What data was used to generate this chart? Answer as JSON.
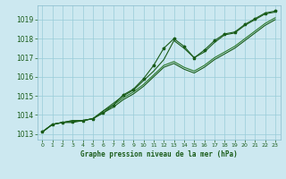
{
  "x": [
    0,
    1,
    2,
    3,
    4,
    5,
    6,
    7,
    8,
    9,
    10,
    11,
    12,
    13,
    14,
    15,
    16,
    17,
    18,
    19,
    20,
    21,
    22,
    23
  ],
  "line1": [
    1013.1,
    1013.5,
    1013.6,
    1013.7,
    1013.7,
    1013.8,
    1014.2,
    1014.6,
    1015.0,
    1015.3,
    1015.8,
    1016.3,
    1016.9,
    1017.9,
    1017.5,
    1017.0,
    1017.3,
    1017.8,
    1018.2,
    1018.3,
    1018.7,
    1019.0,
    1019.3,
    1019.4
  ],
  "line2": [
    1013.1,
    1013.5,
    1013.6,
    1013.7,
    1013.7,
    1013.8,
    1014.2,
    1014.5,
    1014.9,
    1015.2,
    1015.6,
    1016.1,
    1016.6,
    1016.8,
    1016.5,
    1016.3,
    1016.6,
    1017.0,
    1017.3,
    1017.6,
    1018.0,
    1018.4,
    1018.8,
    1019.1
  ],
  "line3": [
    1013.1,
    1013.5,
    1013.6,
    1013.6,
    1013.7,
    1013.8,
    1014.1,
    1014.4,
    1014.8,
    1015.1,
    1015.5,
    1016.0,
    1016.5,
    1016.7,
    1016.4,
    1016.2,
    1016.5,
    1016.9,
    1017.2,
    1017.5,
    1017.9,
    1018.3,
    1018.7,
    1019.0
  ],
  "line4": [
    1013.1,
    1013.5,
    1013.6,
    1013.65,
    1013.7,
    1013.8,
    1014.1,
    1014.5,
    1015.05,
    1015.35,
    1015.9,
    1016.6,
    1017.5,
    1018.0,
    1017.6,
    1017.0,
    1017.4,
    1017.9,
    1018.25,
    1018.35,
    1018.75,
    1019.05,
    1019.35,
    1019.45
  ],
  "ylabel_values": [
    1013,
    1014,
    1015,
    1016,
    1017,
    1018,
    1019
  ],
  "xlabel": "Graphe pression niveau de la mer (hPa)",
  "bg_color": "#cce8f0",
  "grid_color": "#99ccd8",
  "line_color": "#1a5c1a",
  "line_color2": "#2d7a2d",
  "ylim_min": 1012.7,
  "ylim_max": 1019.75,
  "xlim_min": -0.5,
  "xlim_max": 23.5
}
